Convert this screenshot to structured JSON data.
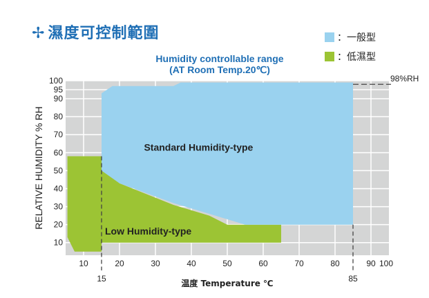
{
  "header": {
    "title": "濕度可控制範圍"
  },
  "colors": {
    "standard": "#9ad2ef",
    "low": "#9cc434",
    "plot_bg": "#d4d5d5",
    "grid": "#ffffff",
    "accent": "#1f6fb5"
  },
  "legend": [
    {
      "label": "：一般型",
      "color": "#9ad2ef"
    },
    {
      "label": "：低濕型",
      "color": "#9cc434"
    }
  ],
  "chart_data": {
    "type": "area",
    "title": "Humidity controllable range",
    "subtitle": "(AT Room Temp.20℃)",
    "xlabel": "温度 Temperature ℃",
    "ylabel": "RELATIVE HUMIDITY % RH",
    "xlim": [
      5,
      95
    ],
    "ylim": [
      3,
      100
    ],
    "x_ticks": [
      10,
      20,
      30,
      40,
      50,
      60,
      70,
      80,
      90,
      100
    ],
    "y_ticks": [
      10,
      20,
      30,
      40,
      50,
      60,
      70,
      80,
      90,
      95,
      100
    ],
    "grid": true,
    "marker_lines": [
      {
        "axis": "x",
        "value": 15,
        "label": "15"
      },
      {
        "axis": "x",
        "value": 85,
        "label": "85"
      },
      {
        "axis": "y",
        "value": 98,
        "label": "98%RH"
      }
    ],
    "series": [
      {
        "name": "Low Humidity-type",
        "polygon": [
          [
            5.5,
            58
          ],
          [
            15,
            58
          ],
          [
            15,
            53
          ],
          [
            20,
            43
          ],
          [
            35,
            31
          ],
          [
            45,
            25
          ],
          [
            50,
            20
          ],
          [
            65,
            20
          ],
          [
            65,
            10
          ],
          [
            15,
            10
          ],
          [
            15,
            5
          ],
          [
            7.5,
            5
          ],
          [
            5.5,
            13
          ]
        ]
      },
      {
        "name": "Standard Humidity-type",
        "polygon": [
          [
            15,
            93
          ],
          [
            18,
            97
          ],
          [
            35,
            97
          ],
          [
            37,
            99
          ],
          [
            85,
            99
          ],
          [
            85,
            20
          ],
          [
            55,
            20
          ],
          [
            45,
            26
          ],
          [
            35,
            32
          ],
          [
            20,
            43
          ],
          [
            15,
            50
          ]
        ]
      }
    ]
  }
}
